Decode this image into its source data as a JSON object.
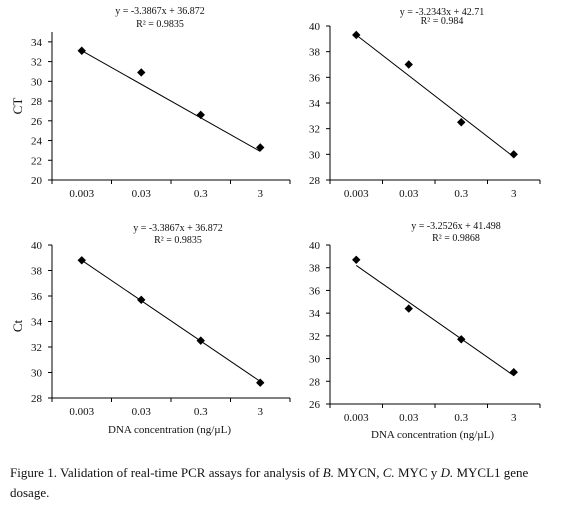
{
  "figure": {
    "x_axis_title": "DNA concentration (ng/µL)",
    "caption": {
      "prefix": "Figure 1. Validation of real-time PCR assays for analysis of ",
      "b_label": "B.",
      "b_gene": " MYCN, ",
      "c_label": "C.",
      "c_gene": " MYC y ",
      "d_label": "D.",
      "d_gene": " MYCL1 gene dosage."
    }
  },
  "chart_data": [
    {
      "type": "scatter",
      "panel": "top-left",
      "ylabel": "CT",
      "xlabel": "",
      "categories": [
        "0.003",
        "0.03",
        "0.3",
        "3"
      ],
      "x": [
        0.003,
        0.03,
        0.3,
        3
      ],
      "y": [
        33.1,
        30.9,
        26.6,
        23.3
      ],
      "ylim": [
        20,
        35
      ],
      "yticks": [
        20,
        22,
        24,
        26,
        28,
        30,
        32,
        34
      ],
      "trendline": {
        "slope": -3.3867,
        "intercept": 36.872,
        "r2": 0.9835,
        "fit": [
          33.1,
          29.7,
          26.3,
          22.9
        ]
      },
      "equation": "y = -3.3867x + 36.872",
      "r2_label": "R² = 0.9835",
      "grid": false,
      "legend": "none"
    },
    {
      "type": "scatter",
      "panel": "top-right",
      "ylabel": "",
      "xlabel": "",
      "categories": [
        "0.003",
        "0.03",
        "0.3",
        "3"
      ],
      "x": [
        0.003,
        0.03,
        0.3,
        3
      ],
      "y": [
        39.3,
        37.0,
        32.5,
        30.0
      ],
      "ylim": [
        28,
        40
      ],
      "yticks": [
        28,
        30,
        32,
        34,
        36,
        38,
        40
      ],
      "trendline": {
        "slope": -3.2343,
        "intercept": 42.71,
        "r2": 0.984,
        "fit": [
          39.3,
          36.2,
          32.8,
          29.8
        ]
      },
      "equation": "y = -3.2343x + 42.71",
      "r2_label": "R² = 0.984",
      "grid": false,
      "legend": "none"
    },
    {
      "type": "scatter",
      "panel": "bottom-left",
      "ylabel": "Ct",
      "xlabel": "DNA concentration (ng/µL)",
      "categories": [
        "0.003",
        "0.03",
        "0.3",
        "3"
      ],
      "x": [
        0.003,
        0.03,
        0.3,
        3
      ],
      "y": [
        38.8,
        35.7,
        32.5,
        29.2
      ],
      "ylim": [
        28,
        40
      ],
      "yticks": [
        28,
        30,
        32,
        34,
        36,
        38,
        40
      ],
      "trendline": {
        "slope": -3.3867,
        "intercept": 36.872,
        "r2": 0.9835,
        "fit": [
          38.8,
          35.7,
          32.5,
          29.3
        ]
      },
      "equation": "y = -3.3867x + 36.872",
      "r2_label": "R² = 0.9835",
      "grid": false,
      "legend": "none"
    },
    {
      "type": "scatter",
      "panel": "bottom-right",
      "ylabel": "",
      "xlabel": "DNA concentration (ng/µL)",
      "categories": [
        "0.003",
        "0.03",
        "0.3",
        "3"
      ],
      "x": [
        0.003,
        0.03,
        0.3,
        3
      ],
      "y": [
        38.7,
        34.4,
        31.7,
        28.8
      ],
      "ylim": [
        26,
        40
      ],
      "yticks": [
        26,
        28,
        30,
        32,
        34,
        36,
        38,
        40
      ],
      "trendline": {
        "slope": -3.2526,
        "intercept": 41.498,
        "r2": 0.9868,
        "fit": [
          38.2,
          35.0,
          31.7,
          28.5
        ]
      },
      "equation": "y = -3.2526x + 41.498",
      "r2_label": "R² = 0.9868",
      "grid": false,
      "legend": "none"
    }
  ]
}
